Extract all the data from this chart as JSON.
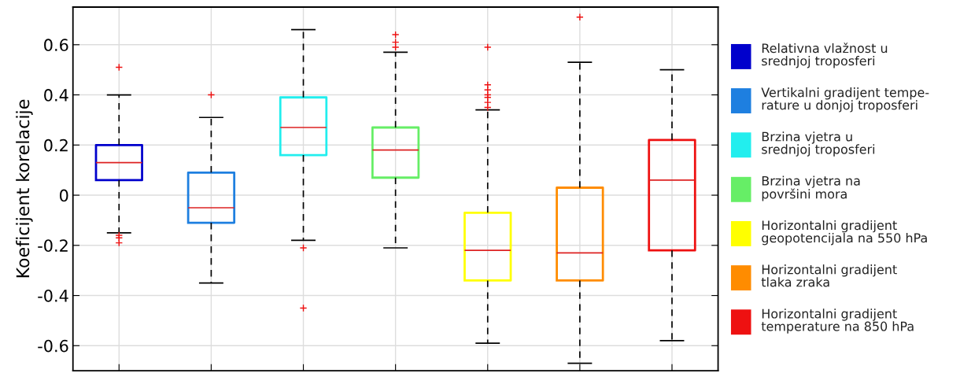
{
  "chart_data": {
    "type": "box",
    "ylabel": "Koeficijent korelacije",
    "categories": [
      null,
      null,
      null,
      null,
      null,
      null,
      null
    ],
    "ylim": [
      -0.7,
      0.75
    ],
    "yticks": [
      {
        "value": -0.6,
        "label": "-0.6"
      },
      {
        "value": -0.4,
        "label": "-0.4"
      },
      {
        "value": -0.2,
        "label": "-0.2"
      },
      0,
      0.2,
      0.4,
      0.6
    ],
    "grid": true,
    "legend": "right",
    "tick_labels": "y",
    "marker": "cross",
    "series": [
      {
        "name": "Relativna vlažnost u\nsrednjoj troposferi",
        "color": "#0000cc",
        "boxes": [
          {
            "low": -0.15,
            "q1": 0.06,
            "median": 0.13,
            "q3": 0.2,
            "high": 0.4,
            "outliers": [
              0.51,
              -0.16,
              -0.17,
              -0.19
            ]
          },
          null,
          null,
          null,
          null,
          null,
          null
        ]
      },
      {
        "name": "Vertikalni gradijent tempe-\nrature u donjoj troposferi",
        "color": "#1e7fe0",
        "boxes": [
          null,
          {
            "low": -0.35,
            "q1": -0.11,
            "median": -0.05,
            "q3": 0.09,
            "high": 0.31,
            "outliers": [
              0.4
            ]
          },
          null,
          null,
          null,
          null,
          null
        ]
      },
      {
        "name": "Brzina vjetra u\nsrednjoj troposferi",
        "color": "#22eeee",
        "boxes": [
          null,
          null,
          {
            "low": -0.18,
            "q1": 0.16,
            "median": 0.27,
            "q3": 0.39,
            "high": 0.66,
            "outliers": [
              -0.21,
              -0.45
            ]
          },
          null,
          null,
          null,
          null
        ]
      },
      {
        "name": "Brzina vjetra na\npovršini mora",
        "color": "#66ee66",
        "boxes": [
          null,
          null,
          null,
          {
            "low": -0.21,
            "q1": 0.07,
            "median": 0.18,
            "q3": 0.27,
            "high": 0.57,
            "outliers": [
              0.64,
              0.61,
              0.59
            ]
          },
          null,
          null,
          null
        ]
      },
      {
        "name": "Horizontalni gradijent\ngeopotencijala na 550 hPa",
        "color": "#ffff00",
        "boxes": [
          null,
          null,
          null,
          null,
          {
            "low": -0.59,
            "q1": -0.34,
            "median": -0.22,
            "q3": -0.07,
            "high": 0.34,
            "outliers": [
              0.59,
              0.44,
              0.42,
              0.4,
              0.39,
              0.37,
              0.35
            ]
          },
          null,
          null
        ]
      },
      {
        "name": "Horizontalni gradijent\ntlaka zraka",
        "color": "#ff8c00",
        "boxes": [
          null,
          null,
          null,
          null,
          null,
          {
            "low": -0.67,
            "q1": -0.34,
            "median": -0.23,
            "q3": 0.03,
            "high": 0.53,
            "outliers": [
              0.71
            ]
          },
          null
        ]
      },
      {
        "name": "Horizontalni gradijent\ntemperature na 850 hPa",
        "color": "#ee1111",
        "boxes": [
          null,
          null,
          null,
          null,
          null,
          null,
          {
            "low": -0.58,
            "q1": -0.22,
            "median": 0.06,
            "q3": 0.22,
            "high": 0.5
          }
        ]
      }
    ]
  }
}
